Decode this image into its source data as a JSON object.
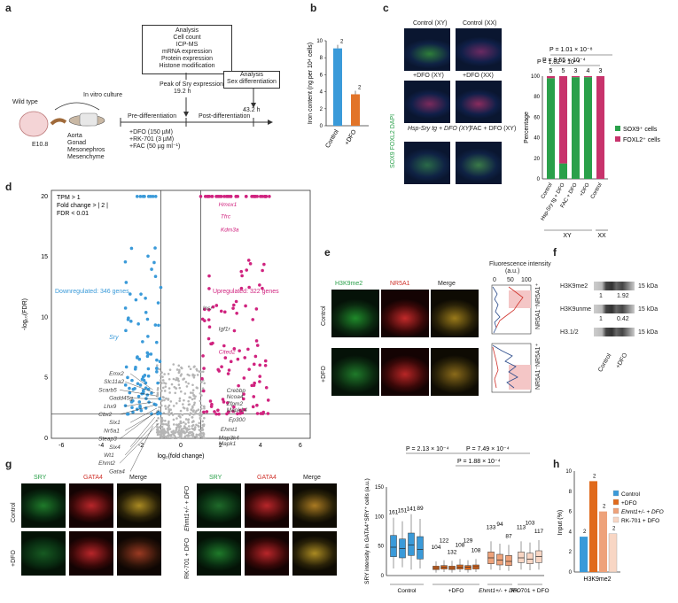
{
  "panel_labels": {
    "a": "a",
    "b": "b",
    "c": "c",
    "d": "d",
    "e": "e",
    "f": "f",
    "g": "g",
    "h": "h"
  },
  "panel_a": {
    "analysis_box": [
      "Analysis",
      "Cell count",
      "ICP-MS",
      "mRNA expression",
      "Protein expression",
      "Histone modification"
    ],
    "peak_label": "Peak of Sry expression",
    "peak_time": "19.2 h",
    "analysis2": [
      "Analysis",
      "Sex differentiation"
    ],
    "time2": "43.2 h",
    "wild_type": "Wild type",
    "in_vitro": "In vitro culture",
    "embryo": "E10.8",
    "tissues": [
      "Aorta",
      "Gonad",
      "Mesonephros",
      "Mesenchyme"
    ],
    "pre": "Pre-differentiation",
    "post": "Post-differentiation",
    "treatments": [
      "+DFO (150 µM)",
      "+RK-701 (3 µM)",
      "+FAC (50 µg ml⁻¹)"
    ]
  },
  "panel_b": {
    "ylabel": "Iron content (ng per 10⁴ cells)",
    "n": "2",
    "colors": {
      "control": "#3a9ad9",
      "dfo": "#e27429"
    }
  },
  "panel_c": {
    "titles": [
      "Control (XY)",
      "Control (XX)",
      "+DFO (XY)",
      "+DFO (XX)",
      "Hsp-Sry tg + DFO (XY)",
      "FAC + DFO (XY)"
    ],
    "stain": "SOX9 FOXL2 DAPI",
    "pvals": [
      "P = 1.01 × 10⁻⁸",
      "P = 9.55 × 10⁻⁴",
      "P = 1.02 × 10⁻⁸"
    ],
    "ns": [
      "5",
      "5",
      "3",
      "4",
      "3"
    ],
    "ylabel": "Percentage",
    "legend": [
      "SOX9⁺ cells",
      "FOXL2⁺ cells"
    ],
    "xgroups": [
      "XY",
      "XX"
    ],
    "colors": {
      "sox9": "#2aa04a",
      "foxl2": "#c8336c"
    }
  },
  "panel_d": {
    "criteria": [
      "TPM > 1",
      "Fold change > | 2 |",
      "FDR < 0.01"
    ],
    "down": "Downregulated: 346 genes",
    "up": "Upregulated: 322 genes",
    "xlabel": "log₂(fold change)",
    "ylabel": "-log₁₀(FDR)",
    "xticks": [
      "-6",
      "-4",
      "-2",
      "0",
      "2",
      "4",
      "6"
    ],
    "yticks": [
      "0",
      "5",
      "10",
      "15",
      "20"
    ],
    "genes_down": [
      "Sry",
      "Emx2",
      "Slc11a2",
      "Scarb5",
      "Gadd45g",
      "Lhx9",
      "Cbx2",
      "Six1",
      "Nr5a1",
      "Steap3",
      "Six4",
      "Wt1",
      "Ehmt2",
      "Gata4"
    ],
    "genes_up": [
      "Hmox1",
      "Tfrc",
      "Kdm3a",
      "Insr",
      "Igf1r",
      "Cited2",
      "Crebbp",
      "Ncoa4",
      "Zfpm2",
      "Mapk14",
      "Ep300",
      "Ehmt1",
      "Map3k4",
      "Mapk1"
    ],
    "colors": {
      "down": "#3a9ad9",
      "up": "#d0237f",
      "ns": "#b5b5b5"
    }
  },
  "panel_e": {
    "cols": [
      "H3K9me2",
      "NR5A1",
      "Merge"
    ],
    "rows": [
      "Control",
      "+DFO"
    ],
    "fluor": "Fluorescence intensity",
    "au": "(a.u.)",
    "ticks": [
      "0",
      "50",
      "100"
    ],
    "side": [
      "NR5A1⁻",
      "NR5A1⁺"
    ]
  },
  "panel_f": {
    "bands": [
      "H3K9me2",
      "H3K9unme",
      "H3.1/2"
    ],
    "kda": "15 kDa",
    "vals": [
      "1",
      "1.92",
      "1",
      "0.42"
    ],
    "lanes": [
      "Control",
      "+DFO"
    ]
  },
  "panel_g": {
    "cols": [
      "SRY",
      "GATA4",
      "Merge"
    ],
    "rows_left": [
      "Control",
      "+DFO"
    ],
    "rows_right": [
      "Ehmt1+/- + DFO",
      "RK-701 + DFO"
    ],
    "pvals": [
      "P = 2.13 × 10⁻⁴",
      "P = 7.49 × 10⁻⁴",
      "P = 1.88 × 10⁻⁴"
    ],
    "ylabel": "SRY intensity in GATA4⁺SRY⁺ cells (a.u.)",
    "groups": [
      "Control",
      "+DFO",
      "Ehmt1+/- + DFO",
      "RK-701 + DFO"
    ],
    "ns": [
      "161",
      "151",
      "141",
      "89",
      "104",
      "122",
      "132",
      "108",
      "129",
      "108",
      "133",
      "94",
      "87",
      "113",
      "103",
      "117"
    ]
  },
  "panel_h": {
    "ylabel": "Input (%)",
    "xlabel": "H3K9me2",
    "legend": [
      "Control",
      "+DFO",
      "Ehmt1+/- + DFO",
      "RK-701 + DFO"
    ],
    "values": [
      3.5,
      9.0,
      6.0,
      3.8
    ],
    "n": "2",
    "colors": [
      "#3a9ad9",
      "#e06a1c",
      "#eea27a",
      "#f8d6c4"
    ]
  }
}
